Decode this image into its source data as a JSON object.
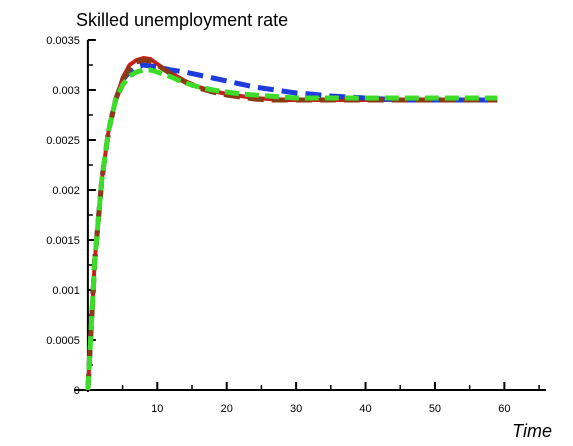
{
  "chart_data": {
    "type": "line",
    "title": "Skilled unemployment rate",
    "xlabel": "Time",
    "ylabel": "",
    "xlim": [
      -2,
      66
    ],
    "ylim": [
      0,
      0.0035
    ],
    "x_ticks": [
      10,
      20,
      30,
      40,
      50,
      60
    ],
    "y_ticks": [
      0,
      0.0005,
      0.001,
      0.0015,
      0.002,
      0.0025,
      0.003,
      0.0035
    ],
    "y_tick_labels": [
      "0",
      "0.0005",
      "0.001",
      "0.0015",
      "0.002",
      "0.0025",
      "0.003",
      "0.0035"
    ],
    "grid": false,
    "legend": "none",
    "series": [
      {
        "color": "#c81e1e",
        "style": "solid",
        "x": [
          0,
          1,
          2,
          3,
          4,
          5,
          6,
          7,
          8,
          9,
          10,
          12,
          14,
          16,
          18,
          20,
          22,
          24,
          26,
          28,
          30,
          32,
          35,
          40,
          45,
          50,
          55,
          59
        ],
        "values": [
          0.0,
          0.0013,
          0.0021,
          0.0026,
          0.0029,
          0.00312,
          0.00325,
          0.0033,
          0.00332,
          0.00331,
          0.00326,
          0.00317,
          0.00309,
          0.00303,
          0.00299,
          0.00296,
          0.00294,
          0.00292,
          0.00291,
          0.0029,
          0.0029,
          0.0029,
          0.0029,
          0.0029,
          0.0029,
          0.0029,
          0.0029,
          0.0029
        ]
      },
      {
        "color": "#1e3cdc",
        "style": "dashed",
        "x": [
          0,
          1,
          2,
          3,
          4,
          5,
          6,
          7,
          8,
          9,
          10,
          12,
          14,
          16,
          18,
          20,
          22,
          24,
          26,
          28,
          30,
          32,
          35,
          40,
          45,
          50,
          55,
          59
        ],
        "values": [
          0.0,
          0.0013,
          0.0021,
          0.0026,
          0.0029,
          0.0031,
          0.00318,
          0.00323,
          0.00325,
          0.00324,
          0.00323,
          0.0032,
          0.00318,
          0.00315,
          0.00312,
          0.00309,
          0.00306,
          0.00303,
          0.00301,
          0.00299,
          0.00297,
          0.00296,
          0.00294,
          0.00292,
          0.0029,
          0.0029,
          0.0029,
          0.0029
        ]
      },
      {
        "color": "#8b3a14",
        "style": "dashed",
        "x": [
          0,
          1,
          2,
          3,
          4,
          5,
          6,
          7,
          8,
          9,
          10,
          12,
          14,
          16,
          18,
          20,
          22,
          24,
          26,
          28,
          30,
          32,
          35,
          40,
          45,
          50,
          55,
          59
        ],
        "values": [
          0.0,
          0.0013,
          0.0021,
          0.0026,
          0.0029,
          0.0031,
          0.00322,
          0.00328,
          0.0033,
          0.00329,
          0.00325,
          0.00316,
          0.00308,
          0.00302,
          0.00298,
          0.00295,
          0.00293,
          0.00291,
          0.0029,
          0.0029,
          0.0029,
          0.0029,
          0.0029,
          0.0029,
          0.0029,
          0.0029,
          0.0029,
          0.0029
        ]
      },
      {
        "color": "#3cdc28",
        "style": "dashed",
        "x": [
          0,
          1,
          2,
          3,
          4,
          5,
          6,
          7,
          8,
          9,
          10,
          12,
          14,
          16,
          18,
          20,
          22,
          24,
          26,
          28,
          30,
          32,
          35,
          40,
          45,
          50,
          55,
          59
        ],
        "values": [
          0.0,
          0.0013,
          0.0021,
          0.0026,
          0.0029,
          0.00305,
          0.00314,
          0.00318,
          0.0032,
          0.0032,
          0.00318,
          0.00313,
          0.00307,
          0.00303,
          0.003,
          0.00298,
          0.00296,
          0.00295,
          0.00294,
          0.00293,
          0.00292,
          0.00292,
          0.00292,
          0.00292,
          0.00292,
          0.00292,
          0.00292,
          0.00292
        ]
      }
    ]
  }
}
